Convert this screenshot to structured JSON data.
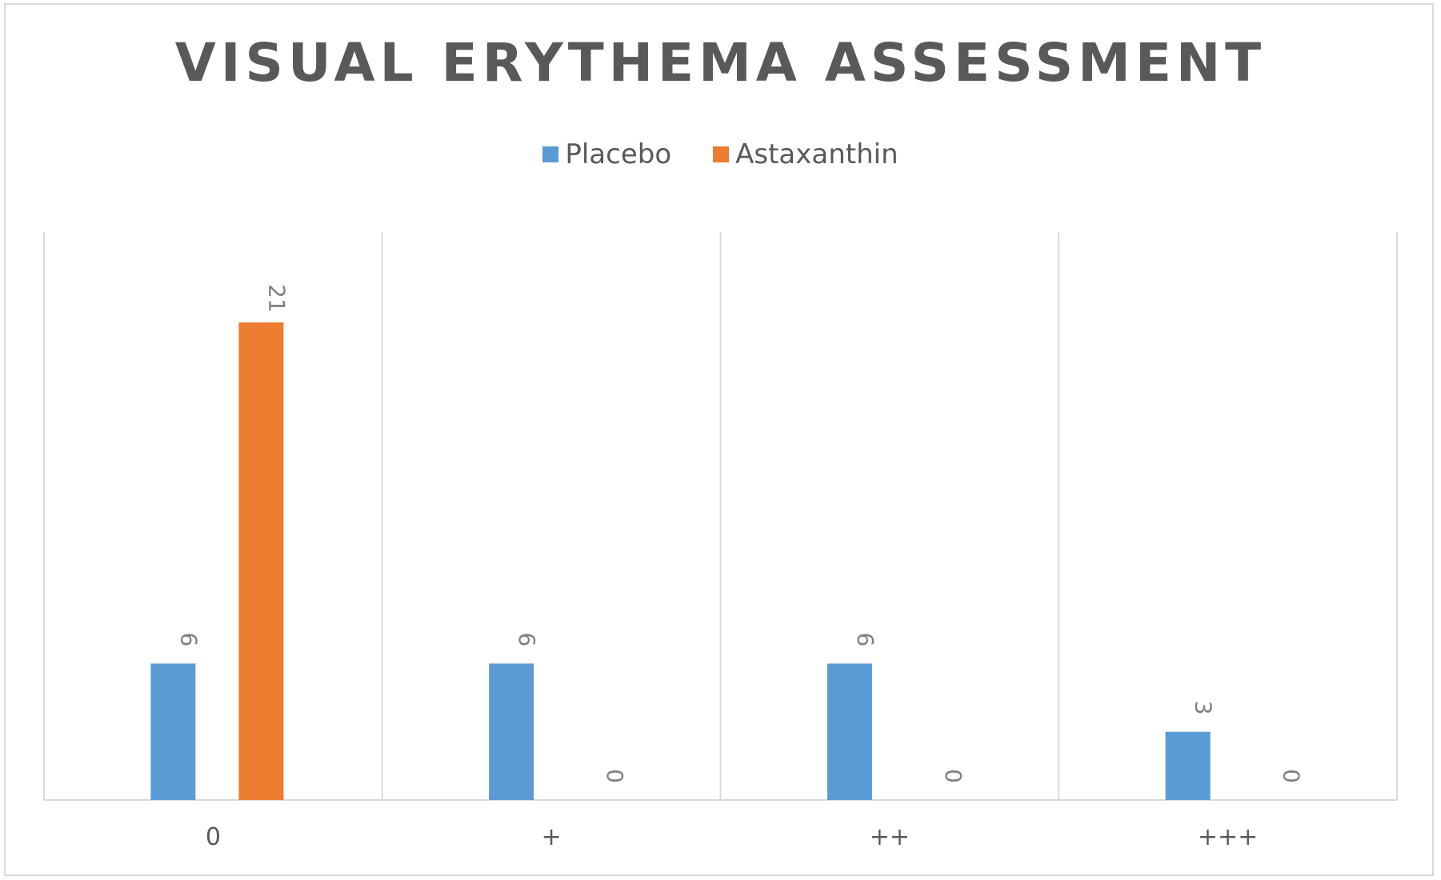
{
  "chart_data": {
    "type": "bar",
    "title": "VISUAL ERYTHEMA ASSESSMENT",
    "categories": [
      "0",
      "+",
      "++",
      "+++"
    ],
    "series": [
      {
        "name": "Placebo",
        "color": "#5b9bd5",
        "values": [
          6,
          6,
          6,
          3
        ]
      },
      {
        "name": "Astaxanthin",
        "color": "#ed7d31",
        "values": [
          21,
          0,
          0,
          0
        ]
      }
    ],
    "xlabel": "",
    "ylabel": "",
    "ylim": [
      0,
      25
    ],
    "legend_position": "top",
    "grid": "vertical category separators",
    "data_labels": "rotated, above bars"
  }
}
